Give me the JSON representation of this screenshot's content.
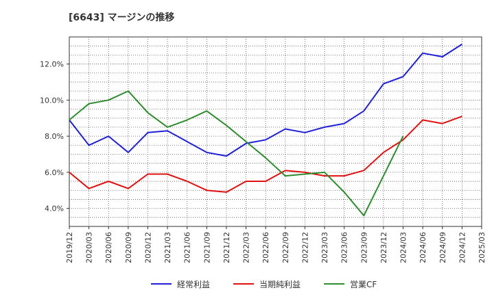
{
  "chart_data": {
    "type": "line",
    "title": "[6643]  マージンの推移",
    "xlabel": "",
    "ylabel": "",
    "x": [
      "2019/12",
      "2020/03",
      "2020/06",
      "2020/09",
      "2020/12",
      "2021/03",
      "2021/06",
      "2021/09",
      "2021/12",
      "2022/03",
      "2022/06",
      "2022/09",
      "2022/12",
      "2023/03",
      "2023/06",
      "2023/09",
      "2023/12",
      "2024/03",
      "2024/06",
      "2024/09",
      "2024/12",
      "2025/03"
    ],
    "yticks": [
      "4.0%",
      "6.0%",
      "8.0%",
      "10.0%",
      "12.0%"
    ],
    "ylim": [
      3.0,
      13.5
    ],
    "grid": true,
    "legend_position": "bottom",
    "series": [
      {
        "name": "経常利益",
        "color": "#1f1fd6",
        "values": [
          8.9,
          7.5,
          8.0,
          7.1,
          8.2,
          8.3,
          7.7,
          7.1,
          6.9,
          7.6,
          7.8,
          8.4,
          8.2,
          8.5,
          8.7,
          9.4,
          10.9,
          11.3,
          12.6,
          12.4,
          13.1,
          null
        ]
      },
      {
        "name": "当期純利益",
        "color": "#e01010",
        "values": [
          6.0,
          5.1,
          5.5,
          5.1,
          5.9,
          5.9,
          5.5,
          5.0,
          4.9,
          5.5,
          5.5,
          6.1,
          6.0,
          5.8,
          5.8,
          6.1,
          7.1,
          7.8,
          8.9,
          8.7,
          9.1,
          null
        ]
      },
      {
        "name": "営業CF",
        "color": "#2e8b2e",
        "values": [
          8.9,
          9.8,
          10.0,
          10.5,
          9.3,
          8.5,
          8.9,
          9.4,
          8.6,
          7.7,
          6.8,
          5.8,
          5.9,
          6.0,
          4.9,
          3.6,
          5.8,
          8.0,
          null,
          null,
          null,
          null
        ]
      }
    ]
  }
}
